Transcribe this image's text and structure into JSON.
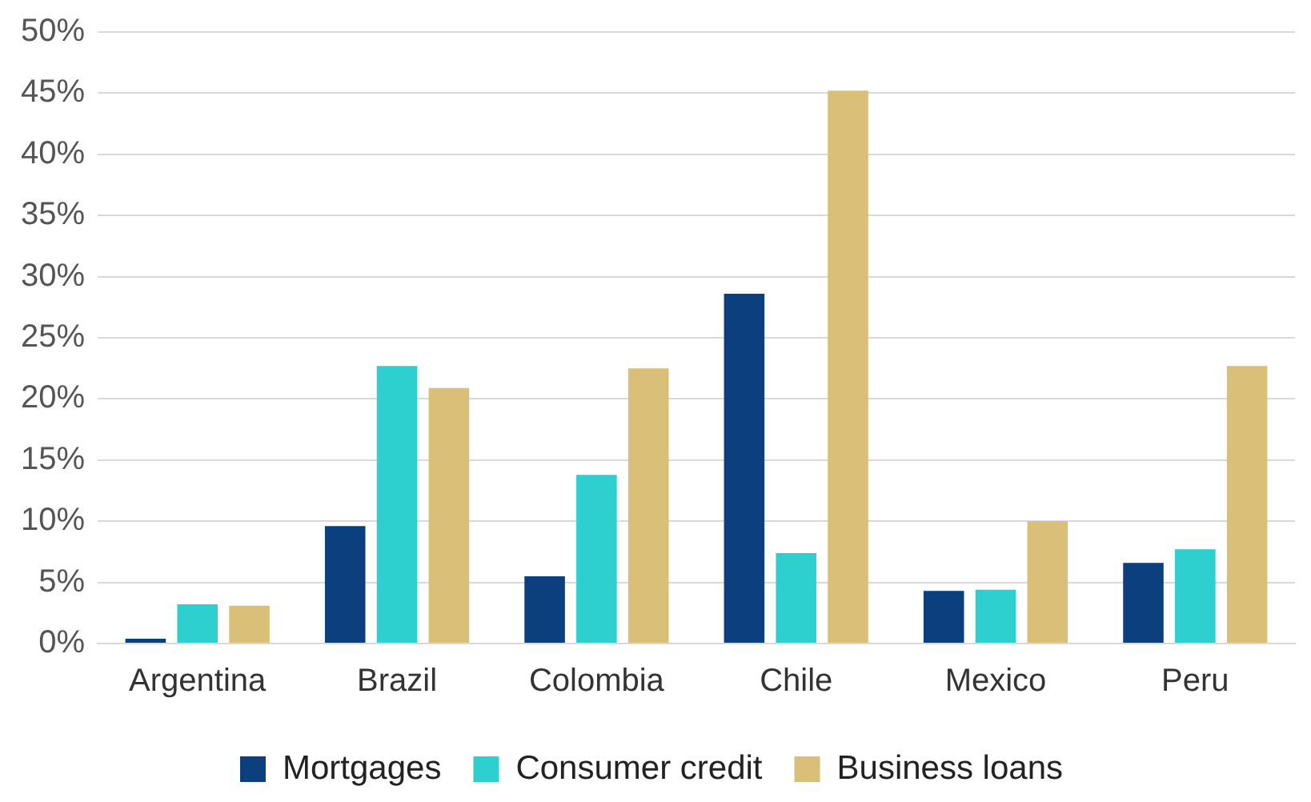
{
  "chart_data": {
    "type": "bar",
    "categories": [
      "Argentina",
      "Brazil",
      "Colombia",
      "Chile",
      "Mexico",
      "Peru"
    ],
    "series": [
      {
        "name": "Mortgages",
        "color": "#0b3f7e",
        "values": [
          0.4,
          9.6,
          5.5,
          28.6,
          4.3,
          6.6
        ]
      },
      {
        "name": "Consumer credit",
        "color": "#2ecfcf",
        "values": [
          3.2,
          22.7,
          13.8,
          7.4,
          4.4,
          7.7
        ]
      },
      {
        "name": "Business loans",
        "color": "#d9bf77",
        "values": [
          3.1,
          20.9,
          22.5,
          45.2,
          10.0,
          22.7
        ]
      }
    ],
    "ylim": [
      0,
      50
    ],
    "yticks": [
      {
        "value": 0,
        "label": "0%"
      },
      {
        "value": 5,
        "label": "5%"
      },
      {
        "value": 10,
        "label": "10%"
      },
      {
        "value": 15,
        "label": "15%"
      },
      {
        "value": 20,
        "label": "20%"
      },
      {
        "value": 25,
        "label": "25%"
      },
      {
        "value": 30,
        "label": "30%"
      },
      {
        "value": 35,
        "label": "35%"
      },
      {
        "value": 40,
        "label": "40%"
      },
      {
        "value": 45,
        "label": "45%"
      },
      {
        "value": 50,
        "label": "50%"
      }
    ],
    "grid": "y",
    "legend": "bottom"
  }
}
